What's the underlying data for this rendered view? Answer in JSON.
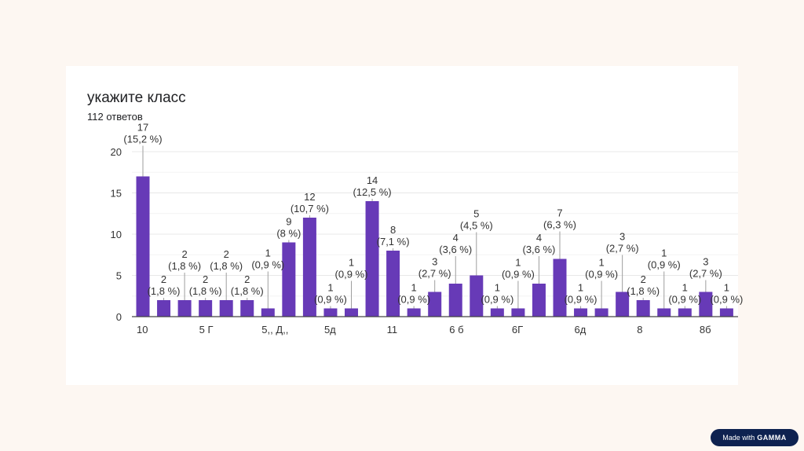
{
  "title": "укажите класс",
  "subtitle": "112 ответов",
  "badge": {
    "prefix": "Made with",
    "brand": "GAMMA"
  },
  "colors": {
    "bar": "#673ab7",
    "grid": "#e8e8e8",
    "axis": "#444444",
    "text": "#333333"
  },
  "chart_data": {
    "type": "bar",
    "title": "укажите класс",
    "subtitle": "112 ответов",
    "xlabel": "",
    "ylabel": "",
    "ylim": [
      0,
      20
    ],
    "yticks": [
      0,
      5,
      10,
      15,
      20
    ],
    "grid": true,
    "tick_labels": [
      {
        "index": 0,
        "label": "10"
      },
      {
        "index": 3,
        "label": "5 Г"
      },
      {
        "index": 6,
        "label": "5,, Д,,"
      },
      {
        "index": 9,
        "label": "5д"
      },
      {
        "index": 12,
        "label": "11"
      },
      {
        "index": 15,
        "label": "6 б"
      },
      {
        "index": 18,
        "label": "6Г"
      },
      {
        "index": 21,
        "label": "6д"
      },
      {
        "index": 24,
        "label": "8"
      },
      {
        "index": 27,
        "label": "8б"
      }
    ],
    "values": [
      17,
      2,
      2,
      2,
      2,
      2,
      1,
      9,
      12,
      1,
      1,
      14,
      8,
      1,
      3,
      4,
      5,
      1,
      1,
      4,
      7,
      1,
      1,
      3,
      2,
      1,
      1,
      3,
      1
    ],
    "data_labels": [
      "17 (15,2 %)",
      "2 (1,8 %)",
      "2 (1,8 %)",
      "2 (1,8 %)",
      "2 (1,8 %)",
      "2 (1,8 %)",
      "1 (0,9 %)",
      "9 (8 %)",
      "12 (10,7 %)",
      "1 (0,9 %)",
      "1 (0,9 %)",
      "14 (12,5 %)",
      "8 (7,1 %)",
      "1 (0,9 %)",
      "3 (2,7 %)",
      "4 (3,6 %)",
      "5 (4,5 %)",
      "1 (0,9 %)",
      "1 (0,9 %)",
      "4 (3,6 %)",
      "7 (6,3 %)",
      "1 (0,9 %)",
      "1 (0,9 %)",
      "3 (2,7 %)",
      "2 (1,8 %)",
      "1 (0,9 %)",
      "1 (0,9 %)",
      "3 (2,7 %)",
      "1 (0,9 %)"
    ]
  }
}
